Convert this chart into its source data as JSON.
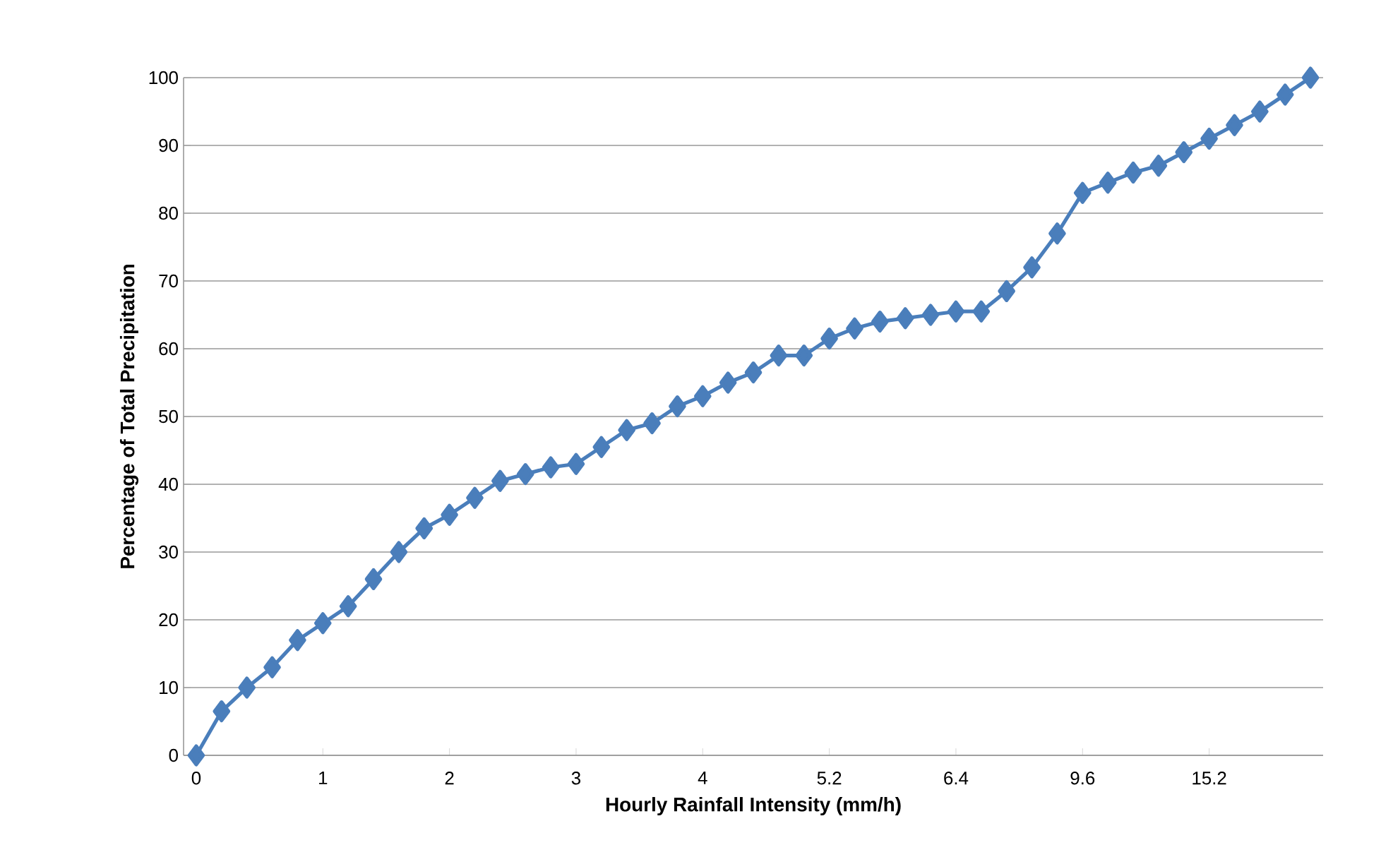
{
  "chart_data": {
    "type": "line",
    "xlabel": "Hourly Rainfall Intensity (mm/h)",
    "ylabel": "Percentage of Total Precipitation",
    "categories": [
      "0",
      null,
      null,
      null,
      null,
      "1",
      null,
      null,
      null,
      null,
      "2",
      null,
      null,
      null,
      null,
      "3",
      null,
      null,
      null,
      null,
      "4",
      null,
      null,
      null,
      null,
      "5.2",
      null,
      null,
      null,
      null,
      "6.4",
      null,
      null,
      null,
      null,
      "9.6",
      null,
      null,
      null,
      null,
      "15.2",
      null,
      null,
      null,
      null
    ],
    "series": [
      {
        "color": "#4a7ebb",
        "values": [
          0,
          6.5,
          10,
          13,
          17,
          19.5,
          22,
          26,
          30,
          33.5,
          35.5,
          38,
          40.5,
          41.5,
          42.5,
          43,
          45.5,
          48,
          49,
          51.5,
          53,
          55,
          56.5,
          59,
          59,
          61.5,
          63,
          64,
          64.5,
          65,
          65.5,
          65.5,
          68.5,
          72,
          77,
          83,
          84.5,
          86,
          87,
          89,
          91,
          93,
          95,
          97.5,
          100
        ]
      }
    ],
    "ylim": [
      0,
      100
    ],
    "yticks": [
      0,
      10,
      20,
      30,
      40,
      50,
      60,
      70,
      80,
      90,
      100
    ],
    "grid": "y",
    "marker": "diamond",
    "line_style": "solid"
  }
}
